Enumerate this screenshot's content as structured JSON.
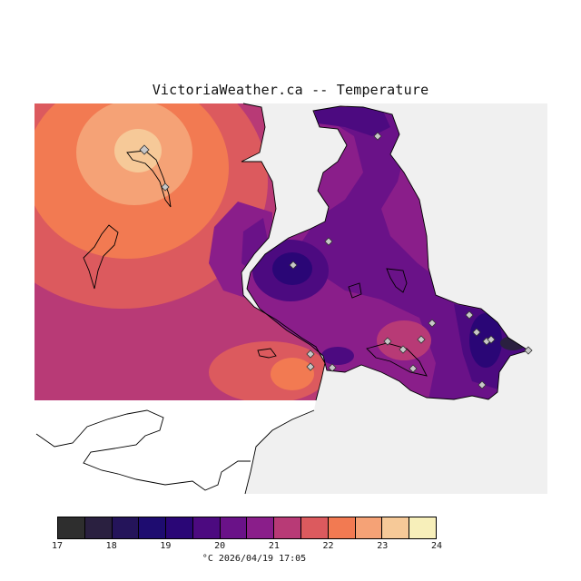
{
  "title": "VictoriaWeather.ca -- Temperature",
  "footer": "°C  2026/04/19 17:05",
  "legend": {
    "ticks": [
      "17",
      "18",
      "19",
      "20",
      "21",
      "22",
      "23",
      "24"
    ],
    "colors": [
      "#2e2e2e",
      "#2a2040",
      "#24145a",
      "#1e0c70",
      "#2a0676",
      "#4c0a80",
      "#6a1288",
      "#8a1e8a",
      "#b83a76",
      "#dc5a5e",
      "#f27a52",
      "#f5a276",
      "#f6c998",
      "#f7efba"
    ]
  },
  "colors": {
    "land_bg": "#f0f0f0",
    "water": "#ffffff",
    "coast": "#000000",
    "station": "#c8c8c8"
  }
}
